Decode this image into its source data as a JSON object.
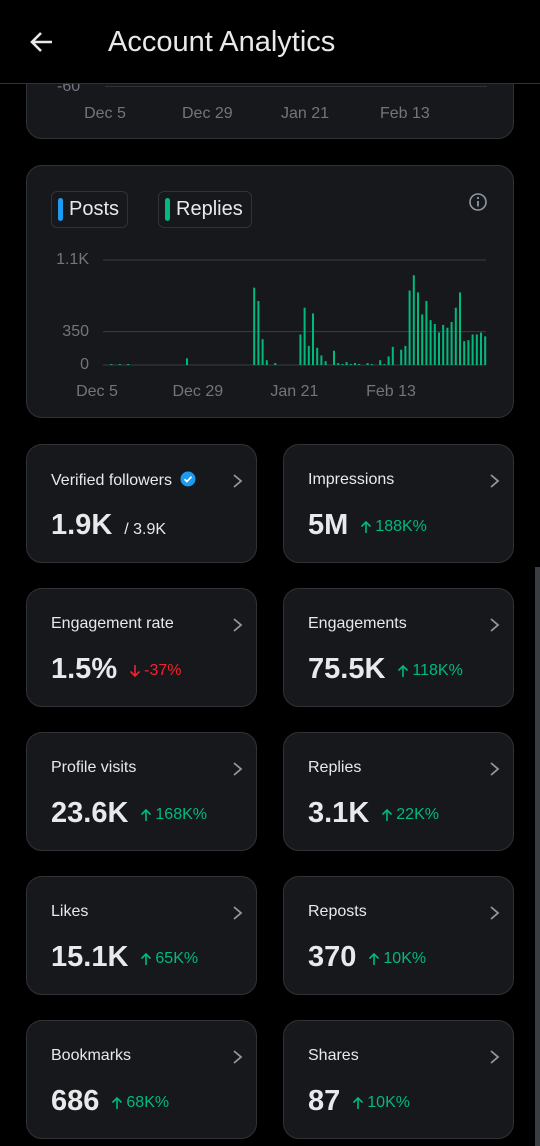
{
  "header": {
    "title": "Account Analytics"
  },
  "top_chart": {
    "ytick_label": "-60",
    "x_labels": [
      "Dec 5",
      "Dec 29",
      "Jan 21",
      "Feb 13"
    ]
  },
  "chart_data": {
    "type": "bar",
    "categories": [
      "Dec 5",
      null,
      null,
      null,
      null,
      null,
      null,
      null,
      null,
      null,
      null,
      null,
      null,
      null,
      null,
      null,
      null,
      null,
      null,
      null,
      null,
      null,
      null,
      null,
      "Dec 29",
      null,
      null,
      null,
      null,
      null,
      null,
      null,
      null,
      null,
      null,
      null,
      null,
      null,
      null,
      null,
      null,
      null,
      null,
      null,
      null,
      null,
      null,
      "Jan 21",
      null,
      null,
      null,
      null,
      null,
      null,
      null,
      null,
      null,
      null,
      null,
      null,
      null,
      null,
      null,
      null,
      null,
      null,
      null,
      null,
      null,
      null,
      "Feb 13",
      null,
      null,
      null,
      null,
      null,
      null,
      null,
      null,
      null,
      null,
      null,
      null,
      null,
      null,
      null,
      null,
      null,
      null,
      null,
      null,
      null
    ],
    "series": [
      {
        "name": "Posts",
        "color": "#1d9bf0",
        "values": [
          0,
          0,
          0,
          0,
          0,
          0,
          0,
          0,
          0,
          0,
          0,
          0,
          0,
          0,
          0,
          0,
          0,
          0,
          0,
          0,
          0,
          0,
          0,
          0,
          0,
          0,
          0,
          0,
          0,
          0,
          0,
          0,
          0,
          0,
          0,
          0,
          0,
          0,
          0,
          0,
          0,
          0,
          0,
          0,
          0,
          0,
          0,
          0,
          0,
          0,
          0,
          0,
          0,
          0,
          0,
          0,
          0,
          0,
          0,
          0,
          0,
          0,
          0,
          0,
          0,
          0,
          0,
          0,
          0,
          0,
          0,
          0,
          0,
          0,
          0,
          0,
          0,
          0,
          0,
          0,
          0,
          0,
          0,
          0,
          0,
          0,
          0,
          0,
          0,
          0,
          0,
          0
        ]
      },
      {
        "name": "Replies",
        "color": "#00ba7c",
        "values": [
          0,
          0,
          10,
          0,
          10,
          0,
          10,
          0,
          0,
          0,
          0,
          0,
          0,
          0,
          0,
          0,
          0,
          0,
          0,
          0,
          70,
          0,
          0,
          0,
          0,
          0,
          0,
          0,
          0,
          0,
          0,
          0,
          0,
          0,
          0,
          0,
          810,
          670,
          270,
          50,
          0,
          20,
          0,
          0,
          0,
          0,
          0,
          320,
          600,
          200,
          540,
          180,
          100,
          40,
          0,
          150,
          20,
          10,
          30,
          10,
          20,
          10,
          0,
          20,
          10,
          0,
          50,
          10,
          90,
          190,
          0,
          160,
          200,
          780,
          940,
          760,
          530,
          670,
          470,
          430,
          340,
          420,
          390,
          450,
          600,
          760,
          250,
          260,
          320,
          320,
          340,
          300
        ]
      }
    ],
    "ylim": [
      0,
      1100
    ],
    "yticks": [
      0,
      350,
      {
        "value": 1100,
        "label": "1.1K"
      }
    ],
    "grid": true
  },
  "metrics": [
    {
      "label": "Verified followers",
      "value": "1.9K",
      "total": "/ 3.9K"
    },
    {
      "label": "Impressions",
      "value": "5M",
      "change": "188K%",
      "direction": "up"
    },
    {
      "label": "Engagement rate",
      "value": "1.5%",
      "change": "-37%",
      "direction": "down"
    },
    {
      "label": "Engagements",
      "value": "75.5K",
      "change": "118K%",
      "direction": "up"
    },
    {
      "label": "Profile visits",
      "value": "23.6K",
      "change": "168K%",
      "direction": "up"
    },
    {
      "label": "Replies",
      "value": "3.1K",
      "change": "22K%",
      "direction": "up"
    },
    {
      "label": "Likes",
      "value": "15.1K",
      "change": "65K%",
      "direction": "up"
    },
    {
      "label": "Reposts",
      "value": "370",
      "change": "10K%",
      "direction": "up"
    },
    {
      "label": "Bookmarks",
      "value": "686",
      "change": "68K%",
      "direction": "up"
    },
    {
      "label": "Shares",
      "value": "87",
      "change": "10K%",
      "direction": "up"
    }
  ]
}
